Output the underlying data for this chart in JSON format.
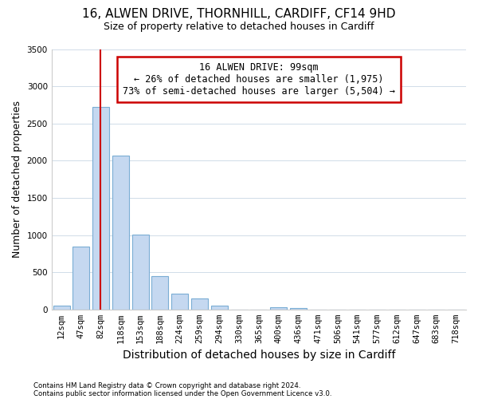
{
  "title": "16, ALWEN DRIVE, THORNHILL, CARDIFF, CF14 9HD",
  "subtitle": "Size of property relative to detached houses in Cardiff",
  "xlabel": "Distribution of detached houses by size in Cardiff",
  "ylabel": "Number of detached properties",
  "bar_categories": [
    "12sqm",
    "47sqm",
    "82sqm",
    "118sqm",
    "153sqm",
    "188sqm",
    "224sqm",
    "259sqm",
    "294sqm",
    "330sqm",
    "365sqm",
    "400sqm",
    "436sqm",
    "471sqm",
    "506sqm",
    "541sqm",
    "577sqm",
    "612sqm",
    "647sqm",
    "683sqm",
    "718sqm"
  ],
  "bar_values": [
    55,
    850,
    2720,
    2070,
    1010,
    450,
    210,
    145,
    55,
    0,
    0,
    35,
    20,
    0,
    0,
    0,
    0,
    0,
    0,
    0,
    0
  ],
  "bar_color": "#c5d8f0",
  "bar_edge_color": "#7aadd4",
  "vline_color": "#cc0000",
  "annotation_text": "16 ALWEN DRIVE: 99sqm\n← 26% of detached houses are smaller (1,975)\n73% of semi-detached houses are larger (5,504) →",
  "annotation_box_color": "white",
  "annotation_box_edge": "#cc0000",
  "ylim": [
    0,
    3500
  ],
  "yticks": [
    0,
    500,
    1000,
    1500,
    2000,
    2500,
    3000,
    3500
  ],
  "footnote1": "Contains HM Land Registry data © Crown copyright and database right 2024.",
  "footnote2": "Contains public sector information licensed under the Open Government Licence v3.0.",
  "bg_color": "#ffffff",
  "plot_bg_color": "#ffffff",
  "grid_color": "#d0dce8",
  "title_fontsize": 11,
  "subtitle_fontsize": 9,
  "tick_fontsize": 7.5,
  "ylabel_fontsize": 9,
  "xlabel_fontsize": 10
}
